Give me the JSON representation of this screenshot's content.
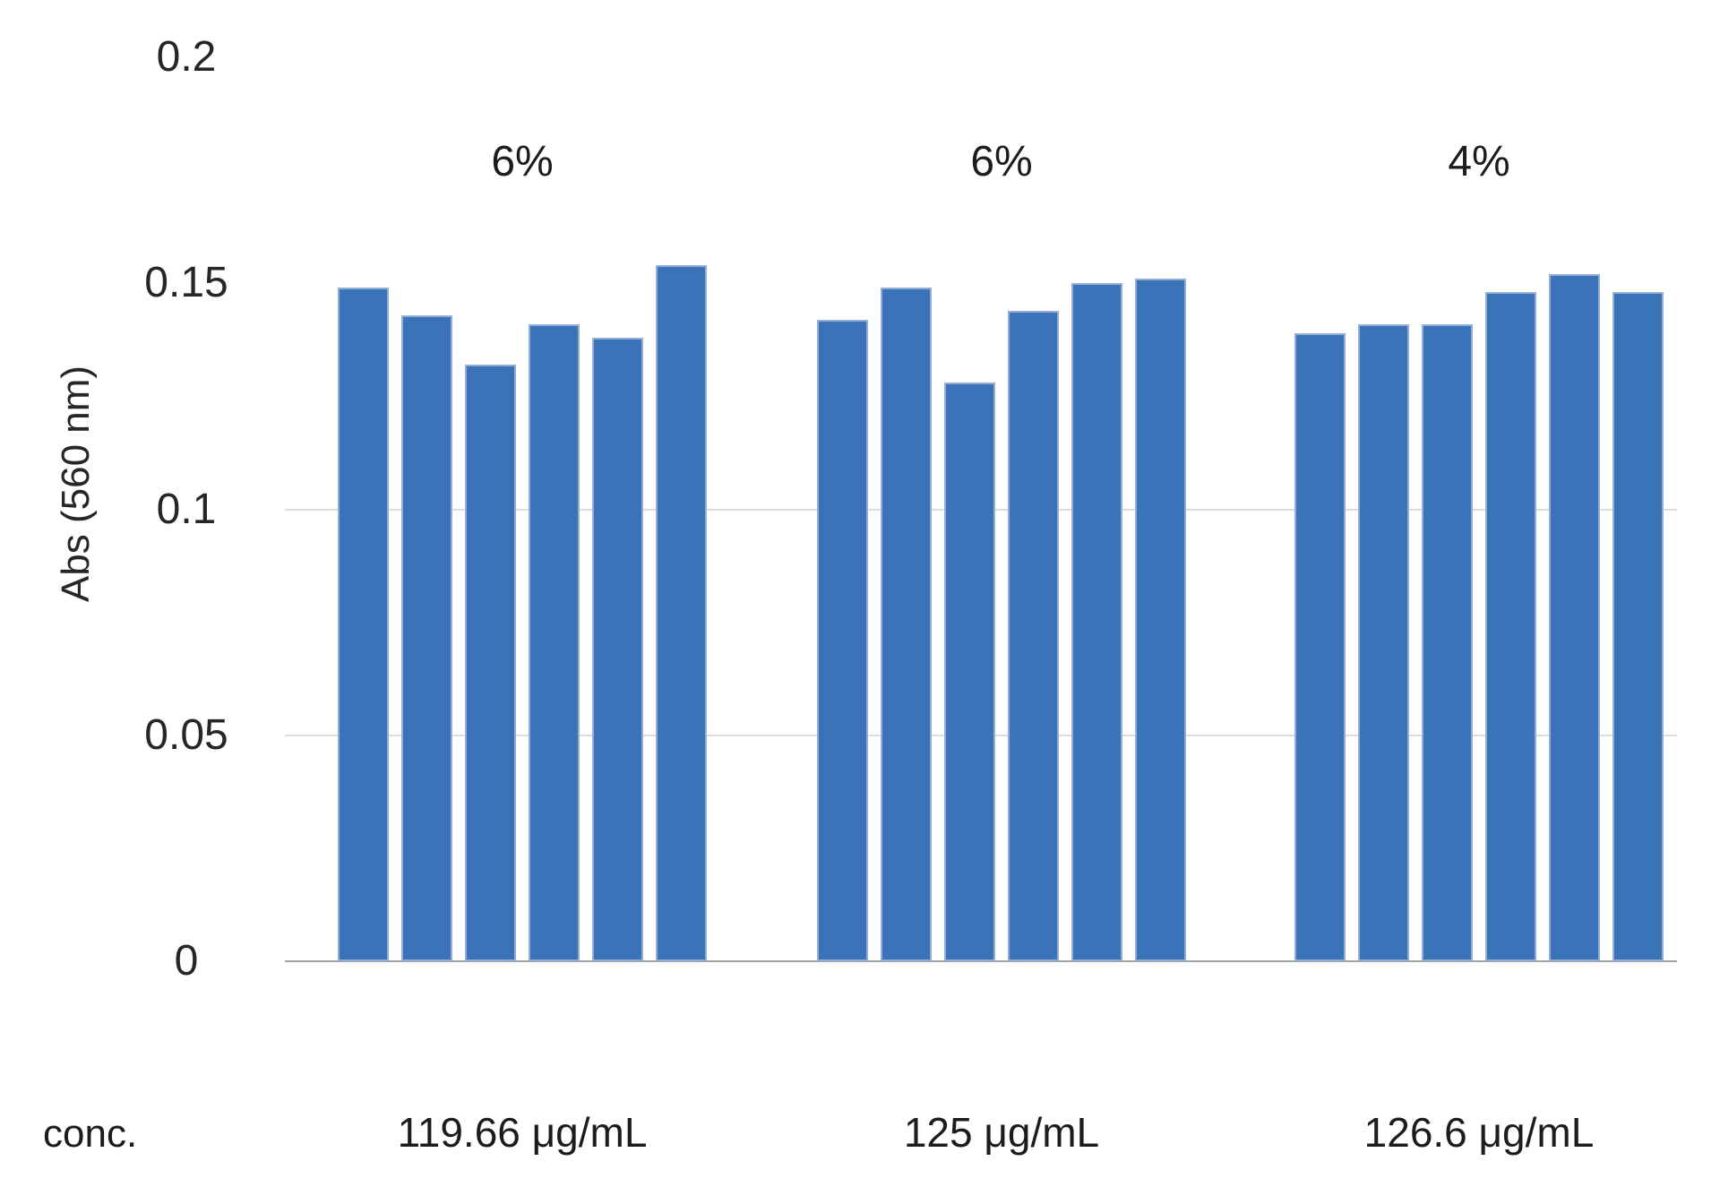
{
  "chart_data": {
    "type": "bar",
    "title": "",
    "ylabel": "Abs (560 nm)",
    "xlabel": "conc.",
    "ylim": [
      0,
      0.2
    ],
    "yticks": [
      0,
      0.05,
      0.1,
      0.15,
      0.2
    ],
    "ytick_labels": [
      "0",
      "0.05",
      "0.1",
      "0.15",
      "0.2"
    ],
    "gridlines_at": [
      0.05,
      0.1
    ],
    "grid": "horizontal-partial",
    "legend": "none",
    "bar_color": "#3A73B8",
    "bar_edge_color": "#93add6",
    "gridline_color": "#dcdcdc",
    "axis_line_color": "#a3a3a3",
    "groups": [
      {
        "label": "119.66 μg/mL",
        "cv_label": "6%",
        "values": [
          0.149,
          0.143,
          0.132,
          0.141,
          0.138,
          0.154
        ]
      },
      {
        "label": "125 μg/mL",
        "cv_label": "6%",
        "values": [
          0.142,
          0.149,
          0.128,
          0.144,
          0.15,
          0.151
        ]
      },
      {
        "label": "126.6 μg/mL",
        "cv_label": "4%",
        "values": [
          0.139,
          0.141,
          0.141,
          0.148,
          0.152,
          0.148
        ]
      }
    ]
  }
}
